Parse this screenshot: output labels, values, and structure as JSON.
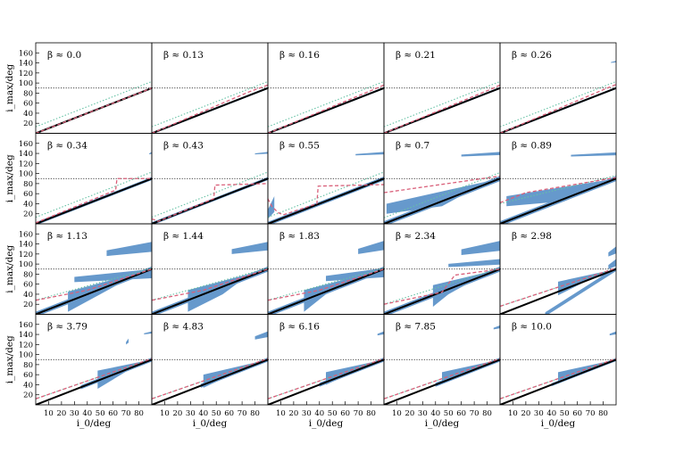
{
  "figure": {
    "ylabel": "i_max/deg",
    "xlabel": "i_0/deg"
  },
  "chart_data": {
    "type": "scatter",
    "grid": false,
    "rows": 4,
    "cols": 5,
    "xlim": [
      0,
      90
    ],
    "ylim": [
      0,
      180
    ],
    "xticks": [
      10,
      20,
      30,
      40,
      50,
      60,
      70,
      80
    ],
    "yticks": [
      20,
      40,
      60,
      80,
      100,
      120,
      140,
      160
    ],
    "horizontal_reference": 90,
    "colors": {
      "scatter": "#6699cc",
      "identity_line": "#000000",
      "dashed_model": "#d9607a",
      "dotted_model": "#66c2a5",
      "reference": "#000000"
    },
    "panels": [
      {
        "beta": "β ≈ 0.0",
        "band": [
          [
            0,
            0
          ],
          [
            90,
            90
          ]
        ],
        "width": 1.5,
        "dash": [
          [
            0,
            0
          ],
          [
            90,
            90
          ]
        ],
        "dot": [
          [
            0,
            13
          ],
          [
            90,
            103
          ]
        ]
      },
      {
        "beta": "β ≈ 0.13",
        "band": [
          [
            0,
            0
          ],
          [
            90,
            90
          ]
        ],
        "width": 2,
        "dash": [
          [
            0,
            0
          ],
          [
            75,
            82
          ],
          [
            90,
            96
          ]
        ],
        "dot": [
          [
            0,
            13
          ],
          [
            90,
            103
          ]
        ]
      },
      {
        "beta": "β ≈ 0.16",
        "band": [
          [
            0,
            0
          ],
          [
            90,
            90
          ]
        ],
        "width": 2,
        "dash": [
          [
            0,
            0
          ],
          [
            80,
            85
          ],
          [
            90,
            96
          ]
        ],
        "dot": [
          [
            0,
            13
          ],
          [
            90,
            103
          ]
        ]
      },
      {
        "beta": "β ≈ 0.21",
        "band": [
          [
            0,
            0
          ],
          [
            90,
            90
          ]
        ],
        "width": 2,
        "dash": [
          [
            0,
            0
          ],
          [
            85,
            90
          ],
          [
            90,
            96
          ]
        ],
        "dot": [
          [
            0,
            13
          ],
          [
            90,
            103
          ]
        ]
      },
      {
        "beta": "β ≈ 0.26",
        "band": [
          [
            0,
            0
          ],
          [
            90,
            90
          ]
        ],
        "width": 2,
        "dash": [
          [
            0,
            0
          ],
          [
            85,
            92
          ],
          [
            90,
            97
          ]
        ],
        "dot": [
          [
            0,
            13
          ],
          [
            90,
            103
          ]
        ],
        "extra": [
          [
            86,
            90,
            140,
            144
          ]
        ]
      },
      {
        "beta": "β ≈ 0.34",
        "band": [
          [
            0,
            0
          ],
          [
            90,
            90
          ]
        ],
        "width": 3,
        "dash": [
          [
            0,
            2
          ],
          [
            62,
            67
          ],
          [
            63,
            90
          ],
          [
            90,
            90
          ]
        ],
        "dot": [
          [
            0,
            13
          ],
          [
            90,
            103
          ]
        ],
        "extra": [
          [
            88,
            90,
            138,
            143
          ]
        ]
      },
      {
        "beta": "β ≈ 0.43",
        "band": [
          [
            0,
            0
          ],
          [
            90,
            90
          ]
        ],
        "width": 3,
        "dash": [
          [
            0,
            10
          ],
          [
            5,
            5
          ],
          [
            48,
            50
          ],
          [
            49,
            77
          ],
          [
            90,
            80
          ]
        ],
        "dot": [
          [
            0,
            13
          ],
          [
            90,
            103
          ]
        ],
        "extra": [
          [
            80,
            90,
            138,
            143
          ]
        ]
      },
      {
        "beta": "β ≈ 0.55",
        "band": [
          [
            0,
            0
          ],
          [
            90,
            90
          ]
        ],
        "width": 4,
        "dash": [
          [
            0,
            50
          ],
          [
            3,
            35
          ],
          [
            8,
            22
          ],
          [
            12,
            18
          ],
          [
            38,
            40
          ],
          [
            39,
            75
          ],
          [
            90,
            78
          ]
        ],
        "dot": [
          [
            0,
            13
          ],
          [
            90,
            103
          ]
        ],
        "extra": [
          [
            68,
            90,
            136,
            143
          ],
          [
            0,
            5,
            10,
            55
          ]
        ]
      },
      {
        "beta": "β ≈ 0.7",
        "band": [
          [
            0,
            0
          ],
          [
            90,
            90
          ]
        ],
        "width": 5,
        "fill": [
          [
            2,
            66,
            20
          ],
          [
            45,
            62,
            35
          ],
          [
            70,
            82,
            70
          ]
        ],
        "dash": [
          [
            0,
            62
          ],
          [
            90,
            95
          ]
        ],
        "dot": [
          [
            0,
            12
          ],
          [
            90,
            102
          ]
        ],
        "extra": [
          [
            60,
            90,
            134,
            143
          ]
        ]
      },
      {
        "beta": "β ≈ 0.89",
        "band": [
          [
            0,
            0
          ],
          [
            90,
            90
          ]
        ],
        "width": 5,
        "fill": [
          [
            5,
            62,
            35
          ],
          [
            50,
            75,
            45
          ],
          [
            80,
            92,
            80
          ]
        ],
        "dash": [
          [
            0,
            42
          ],
          [
            20,
            62
          ],
          [
            90,
            92
          ]
        ],
        "dot": [
          [
            0,
            40
          ],
          [
            90,
            96
          ]
        ],
        "extra": [
          [
            55,
            90,
            134,
            142
          ]
        ]
      },
      {
        "beta": "β ≈ 1.13",
        "band": [
          [
            0,
            0
          ],
          [
            90,
            90
          ]
        ],
        "width": 5,
        "fill": [
          [
            25,
            65,
            5
          ],
          [
            50,
            72,
            40
          ],
          [
            75,
            88,
            75
          ]
        ],
        "dash": [
          [
            0,
            28
          ],
          [
            40,
            48
          ],
          [
            90,
            90
          ]
        ],
        "dot": [
          [
            0,
            28
          ],
          [
            90,
            92
          ]
        ],
        "extra": [
          [
            55,
            90,
            116,
            144
          ],
          [
            30,
            90,
            64,
            90
          ]
        ]
      },
      {
        "beta": "β ≈ 1.44",
        "band": [
          [
            0,
            0
          ],
          [
            90,
            90
          ]
        ],
        "width": 5,
        "fill": [
          [
            28,
            60,
            5
          ],
          [
            55,
            72,
            40
          ],
          [
            75,
            88,
            78
          ]
        ],
        "dash": [
          [
            0,
            28
          ],
          [
            40,
            48
          ],
          [
            90,
            90
          ]
        ],
        "dot": [
          [
            0,
            28
          ],
          [
            90,
            92
          ]
        ],
        "extra": [
          [
            62,
            90,
            120,
            144
          ]
        ]
      },
      {
        "beta": "β ≈ 1.83",
        "band": [
          [
            0,
            0
          ],
          [
            90,
            90
          ]
        ],
        "width": 5,
        "fill": [
          [
            28,
            50,
            5
          ],
          [
            45,
            52,
            40
          ],
          [
            75,
            88,
            78
          ]
        ],
        "dash": [
          [
            0,
            28
          ],
          [
            40,
            48
          ],
          [
            90,
            90
          ]
        ],
        "dot": [
          [
            0,
            28
          ],
          [
            90,
            92
          ]
        ],
        "extra": [
          [
            70,
            90,
            120,
            146
          ],
          [
            45,
            90,
            66,
            92
          ]
        ]
      },
      {
        "beta": "β ≈ 2.34",
        "band": [
          [
            0,
            0
          ],
          [
            90,
            90
          ]
        ],
        "width": 5,
        "fill": [
          [
            38,
            55,
            15
          ],
          [
            50,
            60,
            40
          ],
          [
            75,
            88,
            75
          ]
        ],
        "dash": [
          [
            0,
            20
          ],
          [
            45,
            44
          ],
          [
            55,
            78
          ],
          [
            90,
            90
          ]
        ],
        "dot": [
          [
            0,
            20
          ],
          [
            90,
            92
          ]
        ],
        "extra": [
          [
            60,
            90,
            118,
            146
          ],
          [
            50,
            90,
            94,
            110
          ]
        ]
      },
      {
        "beta": "β ≈ 2.98",
        "band": [
          [
            35,
            0
          ],
          [
            90,
            90
          ]
        ],
        "width": 4,
        "fill": [
          [
            45,
            50,
            38
          ],
          [
            70,
            80,
            70
          ],
          [
            85,
            90,
            80
          ]
        ],
        "dash": [
          [
            0,
            16
          ],
          [
            90,
            92
          ]
        ],
        "dot": [
          [
            0,
            16
          ],
          [
            90,
            92
          ]
        ],
        "extra": [
          [
            84,
            90,
            115,
            135
          ],
          [
            84,
            90,
            90,
            110
          ]
        ]
      },
      {
        "beta": "β ≈ 3.79",
        "band": [
          [
            35,
            35
          ],
          [
            90,
            90
          ]
        ],
        "width": 4,
        "fill": [
          [
            48,
            58,
            32
          ],
          [
            70,
            80,
            66
          ],
          [
            84,
            90,
            80
          ]
        ],
        "dash": [
          [
            0,
            12
          ],
          [
            90,
            92
          ]
        ],
        "dot": [
          [
            0,
            12
          ],
          [
            90,
            92
          ]
        ],
        "extra": [
          [
            70,
            72,
            120,
            132
          ],
          [
            84,
            90,
            140,
            146
          ]
        ]
      },
      {
        "beta": "β ≈ 4.83",
        "band": [
          [
            38,
            38
          ],
          [
            90,
            90
          ]
        ],
        "width": 4,
        "fill": [
          [
            40,
            50,
            34
          ],
          [
            60,
            70,
            58
          ],
          [
            84,
            90,
            80
          ]
        ],
        "dash": [
          [
            0,
            12
          ],
          [
            90,
            92
          ]
        ],
        "dot": [
          [
            0,
            12
          ],
          [
            90,
            92
          ]
        ],
        "extra": [
          [
            80,
            90,
            130,
            146
          ]
        ]
      },
      {
        "beta": "β ≈ 6.16",
        "band": [
          [
            40,
            40
          ],
          [
            90,
            90
          ]
        ],
        "width": 4,
        "fill": [
          [
            45,
            55,
            40
          ],
          [
            70,
            80,
            70
          ],
          [
            85,
            90,
            82
          ]
        ],
        "dash": [
          [
            0,
            12
          ],
          [
            90,
            92
          ]
        ],
        "dot": [
          [
            0,
            12
          ],
          [
            90,
            92
          ]
        ],
        "extra": [
          [
            85,
            90,
            138,
            146
          ]
        ]
      },
      {
        "beta": "β ≈ 7.85",
        "band": [
          [
            40,
            40
          ],
          [
            90,
            90
          ]
        ],
        "width": 4,
        "fill": [
          [
            45,
            55,
            42
          ],
          [
            70,
            80,
            72
          ],
          [
            85,
            90,
            84
          ]
        ],
        "dash": [
          [
            0,
            12
          ],
          [
            90,
            92
          ]
        ],
        "dot": [
          [
            0,
            12
          ],
          [
            90,
            92
          ]
        ],
        "extra": [
          [
            85,
            90,
            150,
            158
          ]
        ]
      },
      {
        "beta": "β ≈ 10.0",
        "band": [
          [
            40,
            40
          ],
          [
            90,
            90
          ]
        ],
        "width": 3,
        "fill": [
          [
            45,
            55,
            42
          ],
          [
            70,
            80,
            72
          ],
          [
            85,
            90,
            84
          ]
        ],
        "dash": [
          [
            0,
            12
          ],
          [
            90,
            92
          ]
        ],
        "dot": [
          [
            0,
            12
          ],
          [
            90,
            92
          ]
        ],
        "extra": [
          [
            85,
            90,
            138,
            146
          ]
        ]
      }
    ]
  }
}
